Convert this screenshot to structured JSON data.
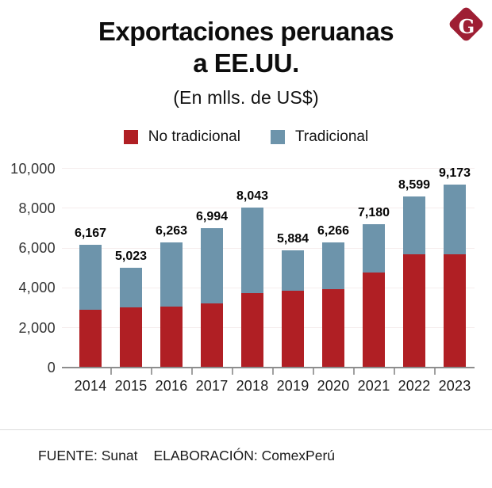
{
  "header": {
    "title_line1": "Exportaciones peruanas",
    "title_line2": "a EE.UU.",
    "subtitle": "(En mlls. de US$)",
    "logo_letter": "G"
  },
  "legend": [
    {
      "label": "No tradicional",
      "color": "#b01f24"
    },
    {
      "label": "Tradicional",
      "color": "#6d94ab"
    }
  ],
  "chart_data": {
    "type": "bar",
    "stacked": true,
    "title": "Exportaciones peruanas a EE.UU.",
    "subtitle": "(En mlls. de US$)",
    "categories": [
      "2014",
      "2015",
      "2016",
      "2017",
      "2018",
      "2019",
      "2020",
      "2021",
      "2022",
      "2023"
    ],
    "series": [
      {
        "name": "No tradicional",
        "color": "#b01f24",
        "values": [
          2900,
          3010,
          3080,
          3220,
          3720,
          3870,
          3950,
          4790,
          5670,
          5680
        ]
      },
      {
        "name": "Tradicional",
        "color": "#6d94ab",
        "values": [
          3267,
          2013,
          3183,
          3774,
          4323,
          2014,
          2316,
          2390,
          2929,
          3493
        ]
      }
    ],
    "totals": [
      6167,
      5023,
      6263,
      6994,
      8043,
      5884,
      6266,
      7180,
      8599,
      9173
    ],
    "total_labels": [
      "6,167",
      "5,023",
      "6,263",
      "6,994",
      "8,043",
      "5,884",
      "6,266",
      "7,180",
      "8,599",
      "9,173"
    ],
    "y_ticks": [
      0,
      2000,
      4000,
      6000,
      8000,
      10000
    ],
    "y_tick_labels": [
      "0",
      "2,000",
      "4,000",
      "6,000",
      "8,000",
      "10,000"
    ],
    "ylim": [
      0,
      10000
    ],
    "grid": true,
    "legend_position": "top"
  },
  "footer": {
    "source": "FUENTE: Sunat",
    "elaboration": "ELABORACIÓN: ComexPerú"
  },
  "colors": {
    "no_tradicional": "#b01f24",
    "tradicional": "#6d94ab",
    "logo": "#9e1e33",
    "axis": "#8d8d8d",
    "gridline": "#f5eded"
  }
}
